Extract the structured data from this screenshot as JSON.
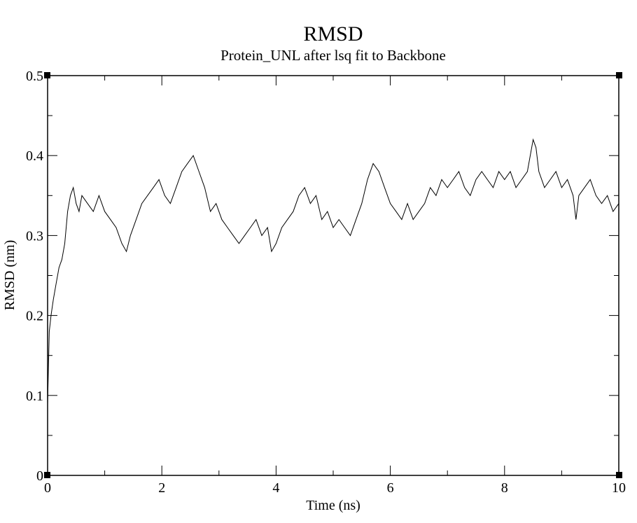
{
  "chart_data": {
    "type": "line",
    "title": "RMSD",
    "subtitle": "Protein_UNL after lsq fit to Backbone",
    "xlabel": "Time (ns)",
    "ylabel": "RMSD (nm)",
    "xlim": [
      0,
      10
    ],
    "ylim": [
      0,
      0.5
    ],
    "x_ticks": [
      0,
      2,
      4,
      6,
      8,
      10
    ],
    "x_tick_labels": [
      "0",
      "2",
      "4",
      "6",
      "8",
      "10"
    ],
    "y_ticks": [
      0,
      0.1,
      0.2,
      0.3,
      0.4,
      0.5
    ],
    "y_tick_labels": [
      "0",
      "0.1",
      "0.2",
      "0.3",
      "0.4",
      "0.5"
    ],
    "grid": false,
    "line_color": "#000000",
    "series": [
      {
        "x": [
          0,
          0.03,
          0.06,
          0.1,
          0.15,
          0.2,
          0.25,
          0.3,
          0.35,
          0.4,
          0.45,
          0.5,
          0.55,
          0.6,
          0.7,
          0.8,
          0.9,
          1.0,
          1.1,
          1.2,
          1.3,
          1.38,
          1.45,
          1.55,
          1.65,
          1.75,
          1.85,
          1.95,
          2.05,
          2.15,
          2.25,
          2.35,
          2.45,
          2.55,
          2.65,
          2.75,
          2.85,
          2.95,
          3.05,
          3.15,
          3.25,
          3.35,
          3.45,
          3.55,
          3.65,
          3.75,
          3.85,
          3.92,
          4.0,
          4.1,
          4.2,
          4.3,
          4.4,
          4.5,
          4.6,
          4.7,
          4.8,
          4.9,
          5.0,
          5.1,
          5.2,
          5.3,
          5.4,
          5.5,
          5.6,
          5.7,
          5.8,
          5.9,
          6.0,
          6.1,
          6.2,
          6.3,
          6.4,
          6.5,
          6.6,
          6.7,
          6.8,
          6.9,
          7.0,
          7.1,
          7.2,
          7.3,
          7.4,
          7.5,
          7.6,
          7.7,
          7.8,
          7.9,
          8.0,
          8.1,
          8.2,
          8.3,
          8.4,
          8.5,
          8.55,
          8.6,
          8.7,
          8.8,
          8.9,
          9.0,
          9.1,
          9.2,
          9.25,
          9.3,
          9.4,
          9.5,
          9.6,
          9.7,
          9.8,
          9.9,
          10.0
        ],
        "y": [
          0.09,
          0.18,
          0.2,
          0.22,
          0.24,
          0.26,
          0.27,
          0.29,
          0.33,
          0.35,
          0.36,
          0.34,
          0.33,
          0.35,
          0.34,
          0.33,
          0.35,
          0.33,
          0.32,
          0.31,
          0.29,
          0.28,
          0.3,
          0.32,
          0.34,
          0.35,
          0.36,
          0.37,
          0.35,
          0.34,
          0.36,
          0.38,
          0.39,
          0.4,
          0.38,
          0.36,
          0.33,
          0.34,
          0.32,
          0.31,
          0.3,
          0.29,
          0.3,
          0.31,
          0.32,
          0.3,
          0.31,
          0.28,
          0.29,
          0.31,
          0.32,
          0.33,
          0.35,
          0.36,
          0.34,
          0.35,
          0.32,
          0.33,
          0.31,
          0.32,
          0.31,
          0.3,
          0.32,
          0.34,
          0.37,
          0.39,
          0.38,
          0.36,
          0.34,
          0.33,
          0.32,
          0.34,
          0.32,
          0.33,
          0.34,
          0.36,
          0.35,
          0.37,
          0.36,
          0.37,
          0.38,
          0.36,
          0.35,
          0.37,
          0.38,
          0.37,
          0.36,
          0.38,
          0.37,
          0.38,
          0.36,
          0.37,
          0.38,
          0.42,
          0.41,
          0.38,
          0.36,
          0.37,
          0.38,
          0.36,
          0.37,
          0.35,
          0.32,
          0.35,
          0.36,
          0.37,
          0.35,
          0.34,
          0.35,
          0.33,
          0.34
        ]
      }
    ]
  }
}
